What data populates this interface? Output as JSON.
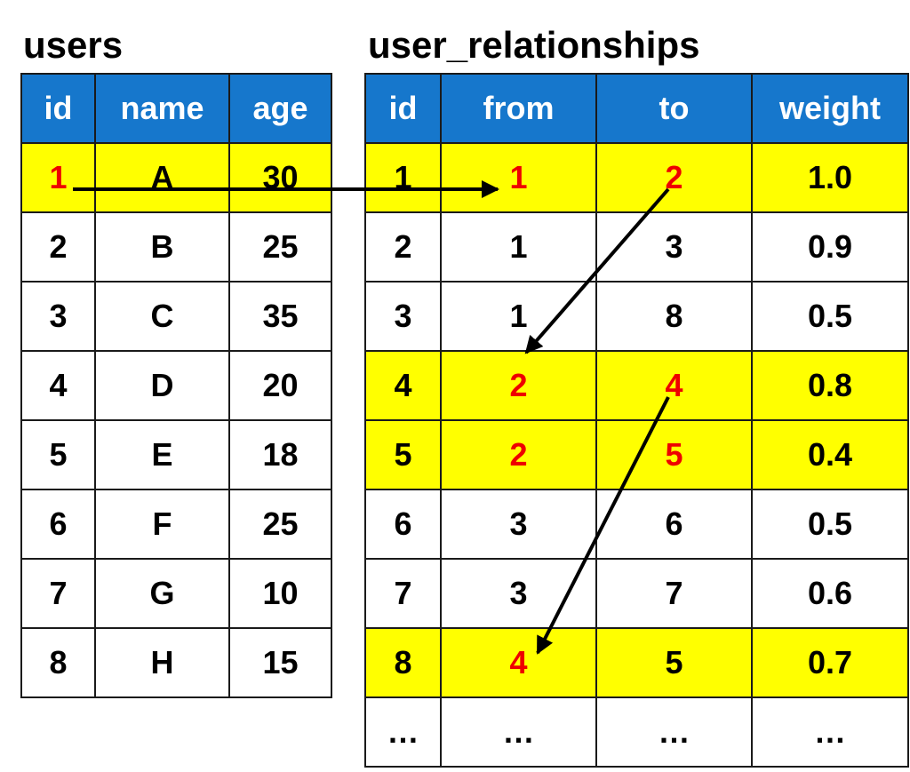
{
  "users_table": {
    "title": "users",
    "headers": [
      "id",
      "name",
      "age"
    ],
    "rows": [
      {
        "id": "1",
        "name": "A",
        "age": "30",
        "highlight": true,
        "red": [
          "id"
        ]
      },
      {
        "id": "2",
        "name": "B",
        "age": "25"
      },
      {
        "id": "3",
        "name": "C",
        "age": "35"
      },
      {
        "id": "4",
        "name": "D",
        "age": "20"
      },
      {
        "id": "5",
        "name": "E",
        "age": "18"
      },
      {
        "id": "6",
        "name": "F",
        "age": "25"
      },
      {
        "id": "7",
        "name": "G",
        "age": "10"
      },
      {
        "id": "8",
        "name": "H",
        "age": "15"
      }
    ]
  },
  "relationships_table": {
    "title": "user_relationships",
    "headers": [
      "id",
      "from",
      "to",
      "weight"
    ],
    "rows": [
      {
        "id": "1",
        "from": "1",
        "to": "2",
        "weight": "1.0",
        "highlight": true,
        "red": [
          "from",
          "to"
        ]
      },
      {
        "id": "2",
        "from": "1",
        "to": "3",
        "weight": "0.9"
      },
      {
        "id": "3",
        "from": "1",
        "to": "8",
        "weight": "0.5"
      },
      {
        "id": "4",
        "from": "2",
        "to": "4",
        "weight": "0.8",
        "highlight": true,
        "red": [
          "from",
          "to"
        ]
      },
      {
        "id": "5",
        "from": "2",
        "to": "5",
        "weight": "0.4",
        "highlight": true,
        "red": [
          "from",
          "to"
        ]
      },
      {
        "id": "6",
        "from": "3",
        "to": "6",
        "weight": "0.5"
      },
      {
        "id": "7",
        "from": "3",
        "to": "7",
        "weight": "0.6"
      },
      {
        "id": "8",
        "from": "4",
        "to": "5",
        "weight": "0.7",
        "highlight": true,
        "red": [
          "from"
        ]
      },
      {
        "id": "…",
        "from": "…",
        "to": "…",
        "weight": "…"
      }
    ]
  },
  "colors": {
    "header_bg": "#1677cc",
    "header_text": "#ffffff",
    "highlight_bg": "#ffff00",
    "emphasis_text": "#ee0000",
    "arrow": "#000000"
  }
}
